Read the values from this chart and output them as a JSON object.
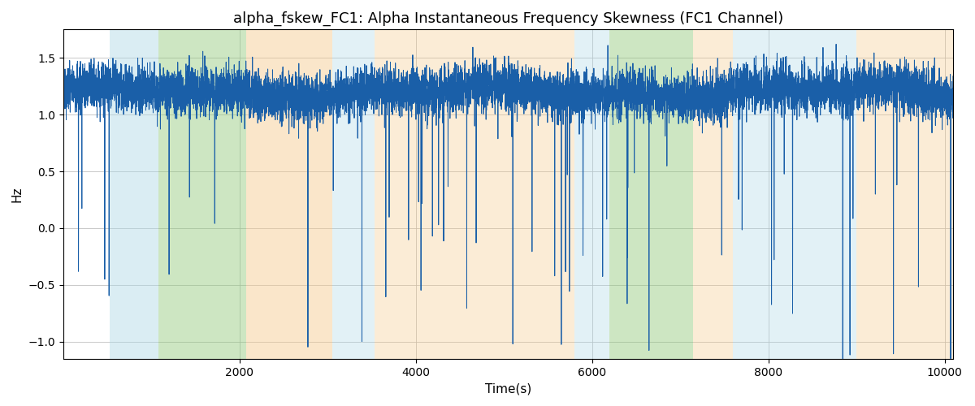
{
  "title": "alpha_fskew_FC1: Alpha Instantaneous Frequency Skewness (FC1 Channel)",
  "xlabel": "Time(s)",
  "ylabel": "Hz",
  "xlim": [
    0,
    10100
  ],
  "ylim": [
    -1.15,
    1.75
  ],
  "x_start": 0,
  "x_end": 10100,
  "num_points": 10100,
  "seed": 7,
  "line_color": "#1a5fa8",
  "line_width": 0.7,
  "background_color": "#ffffff",
  "grid_color": "#bbbbbb",
  "title_fontsize": 13,
  "label_fontsize": 11,
  "tick_fontsize": 10,
  "yticks": [
    -1.0,
    -0.5,
    0.0,
    0.5,
    1.0,
    1.5
  ],
  "xticks": [
    2000,
    4000,
    6000,
    8000,
    10000
  ],
  "colored_regions": [
    {
      "xmin": 530,
      "xmax": 1080,
      "color": "#add8e6",
      "alpha": 0.45
    },
    {
      "xmin": 1080,
      "xmax": 2080,
      "color": "#90c878",
      "alpha": 0.45
    },
    {
      "xmin": 2080,
      "xmax": 3050,
      "color": "#f5c98a",
      "alpha": 0.45
    },
    {
      "xmin": 3050,
      "xmax": 3530,
      "color": "#add8e6",
      "alpha": 0.35
    },
    {
      "xmin": 3530,
      "xmax": 5800,
      "color": "#f5c98a",
      "alpha": 0.35
    },
    {
      "xmin": 5800,
      "xmax": 6200,
      "color": "#add8e6",
      "alpha": 0.35
    },
    {
      "xmin": 6200,
      "xmax": 7150,
      "color": "#90c878",
      "alpha": 0.45
    },
    {
      "xmin": 7150,
      "xmax": 7600,
      "color": "#f5c98a",
      "alpha": 0.35
    },
    {
      "xmin": 7600,
      "xmax": 9000,
      "color": "#add8e6",
      "alpha": 0.35
    },
    {
      "xmin": 9000,
      "xmax": 10100,
      "color": "#f5c98a",
      "alpha": 0.35
    }
  ],
  "spike_count": 55,
  "spike_amp_min": 0.5,
  "spike_amp_max": 2.4,
  "base_mean": 1.2,
  "base_std": 0.09
}
